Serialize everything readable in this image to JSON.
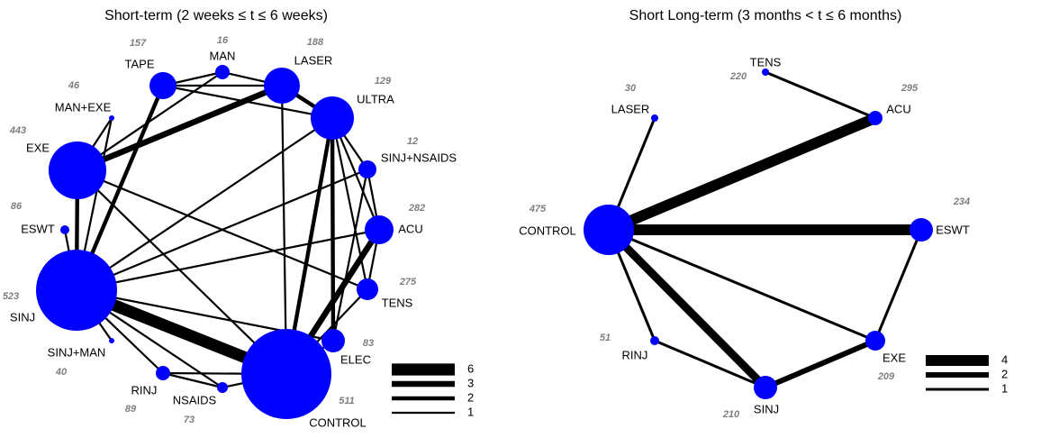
{
  "networks": [
    {
      "title": "Short-term (2 weeks ≤ t ≤ 6 weeks)",
      "nodes": [
        {
          "label": "TAPE",
          "n": 157
        },
        {
          "label": "MAN",
          "n": 16
        },
        {
          "label": "LASER",
          "n": 188
        },
        {
          "label": "ULTRA",
          "n": 129
        },
        {
          "label": "MAN+EXE",
          "n": 46
        },
        {
          "label": "SINJ+NSAIDS",
          "n": 12
        },
        {
          "label": "EXE",
          "n": 443
        },
        {
          "label": "ACU",
          "n": 282
        },
        {
          "label": "ESWT",
          "n": 86
        },
        {
          "label": "TENS",
          "n": 275
        },
        {
          "label": "SINJ",
          "n": 523
        },
        {
          "label": "ELEC",
          "n": 83
        },
        {
          "label": "SINJ+MAN",
          "n": 40
        },
        {
          "label": "RINJ",
          "n": 89
        },
        {
          "label": "NSAIDS",
          "n": 73
        },
        {
          "label": "CONTROL",
          "n": 511
        }
      ],
      "edges": [
        {
          "from": 6,
          "to": 2,
          "studies": 3
        },
        {
          "from": 0,
          "to": 2,
          "studies": 1
        },
        {
          "from": 0,
          "to": 1,
          "studies": 1
        },
        {
          "from": 1,
          "to": 2,
          "studies": 1
        },
        {
          "from": 0,
          "to": 3,
          "studies": 1
        },
        {
          "from": 2,
          "to": 3,
          "studies": 2
        },
        {
          "from": 2,
          "to": 15,
          "studies": 1
        },
        {
          "from": 0,
          "to": 10,
          "studies": 2
        },
        {
          "from": 1,
          "to": 6,
          "studies": 1
        },
        {
          "from": 4,
          "to": 10,
          "studies": 1
        },
        {
          "from": 4,
          "to": 6,
          "studies": 1
        },
        {
          "from": 6,
          "to": 10,
          "studies": 2
        },
        {
          "from": 8,
          "to": 10,
          "studies": 1
        },
        {
          "from": 6,
          "to": 15,
          "studies": 1
        },
        {
          "from": 6,
          "to": 9,
          "studies": 1
        },
        {
          "from": 10,
          "to": 15,
          "studies": 6
        },
        {
          "from": 10,
          "to": 7,
          "studies": 1
        },
        {
          "from": 10,
          "to": 5,
          "studies": 1
        },
        {
          "from": 10,
          "to": 3,
          "studies": 1
        },
        {
          "from": 10,
          "to": 13,
          "studies": 1
        },
        {
          "from": 10,
          "to": 14,
          "studies": 1
        },
        {
          "from": 10,
          "to": 12,
          "studies": 1
        },
        {
          "from": 10,
          "to": 11,
          "studies": 1
        },
        {
          "from": 3,
          "to": 15,
          "studies": 2
        },
        {
          "from": 3,
          "to": 11,
          "studies": 2
        },
        {
          "from": 3,
          "to": 5,
          "studies": 1
        },
        {
          "from": 3,
          "to": 7,
          "studies": 1
        },
        {
          "from": 3,
          "to": 9,
          "studies": 1
        },
        {
          "from": 5,
          "to": 7,
          "studies": 1
        },
        {
          "from": 5,
          "to": 11,
          "studies": 1
        },
        {
          "from": 7,
          "to": 15,
          "studies": 3
        },
        {
          "from": 7,
          "to": 9,
          "studies": 1
        },
        {
          "from": 9,
          "to": 15,
          "studies": 1
        },
        {
          "from": 11,
          "to": 15,
          "studies": 1
        },
        {
          "from": 13,
          "to": 15,
          "studies": 1
        },
        {
          "from": 13,
          "to": 14,
          "studies": 1
        },
        {
          "from": 14,
          "to": 15,
          "studies": 1
        }
      ],
      "legend": [
        6,
        3,
        2,
        1
      ]
    },
    {
      "title": "Short Long-term (3 months < t ≤ 6 months)",
      "nodes": [
        {
          "label": "TENS",
          "n": 220
        },
        {
          "label": "ACU",
          "n": 295
        },
        {
          "label": "LASER",
          "n": 30
        },
        {
          "label": "CONTROL",
          "n": 475
        },
        {
          "label": "ESWT",
          "n": 234
        },
        {
          "label": "RINJ",
          "n": 51
        },
        {
          "label": "EXE",
          "n": 209
        },
        {
          "label": "SINJ",
          "n": 210
        }
      ],
      "edges": [
        {
          "from": 0,
          "to": 1,
          "studies": 1
        },
        {
          "from": 2,
          "to": 3,
          "studies": 1
        },
        {
          "from": 3,
          "to": 1,
          "studies": 4
        },
        {
          "from": 3,
          "to": 4,
          "studies": 4
        },
        {
          "from": 3,
          "to": 5,
          "studies": 1
        },
        {
          "from": 3,
          "to": 7,
          "studies": 3
        },
        {
          "from": 3,
          "to": 6,
          "studies": 1
        },
        {
          "from": 4,
          "to": 6,
          "studies": 1
        },
        {
          "from": 5,
          "to": 7,
          "studies": 1
        },
        {
          "from": 7,
          "to": 6,
          "studies": 2
        }
      ],
      "legend": [
        4,
        2,
        1
      ]
    }
  ]
}
